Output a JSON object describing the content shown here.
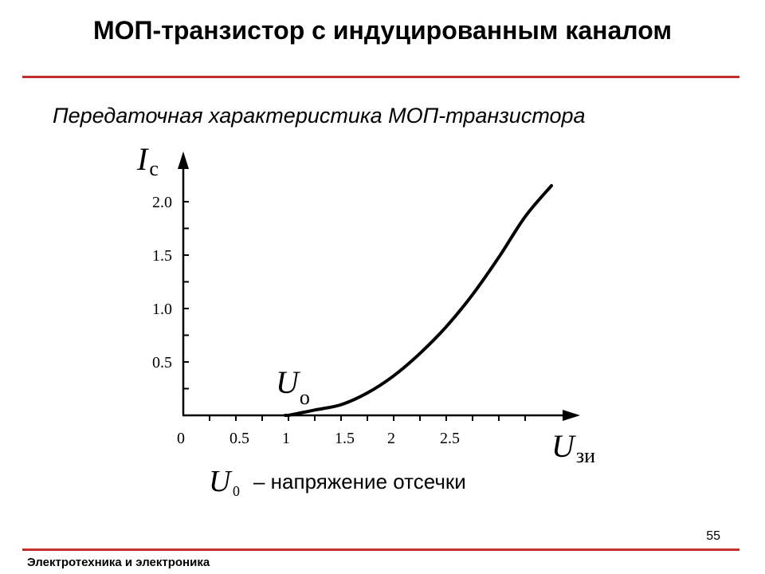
{
  "slide": {
    "title": "МОП-транзистор с индуцированным каналом",
    "subtitle": "Передаточная характеристика МОП-транзистора",
    "page_number": "55",
    "footer": "Электротехника и электроника",
    "accent_color": "#c0302c"
  },
  "note": {
    "symbol": "U",
    "subscript": "0",
    "text": "– напряжение отсечки"
  },
  "chart_data": {
    "type": "line",
    "title": "",
    "ylabel": {
      "main": "I",
      "sub": "с"
    },
    "xlabel": {
      "main": "U",
      "sub": "зи"
    },
    "xlim": [
      0,
      3.7
    ],
    "ylim": [
      0,
      2.3
    ],
    "x_ticks": [
      "0",
      "0.5",
      "1",
      "1.5",
      "2",
      "2.5"
    ],
    "x_tick_values": [
      0,
      0.5,
      1,
      1.5,
      2,
      2.5
    ],
    "y_ticks": [
      "0.5",
      "1.0",
      "1.5",
      "2.0"
    ],
    "y_tick_values": [
      0.5,
      1.0,
      1.5,
      2.0
    ],
    "minor_step": 0.25,
    "threshold": {
      "label_main": "U",
      "label_sub": "о",
      "x": 1.0
    },
    "line_color": "#000000",
    "series": [
      {
        "x": [
          1.0,
          1.25,
          1.5,
          1.75,
          2.0,
          2.25,
          2.5,
          2.75,
          3.0,
          3.25,
          3.5
        ],
        "y": [
          0.0,
          0.05,
          0.1,
          0.21,
          0.37,
          0.58,
          0.83,
          1.13,
          1.48,
          1.86,
          2.15
        ]
      }
    ]
  }
}
